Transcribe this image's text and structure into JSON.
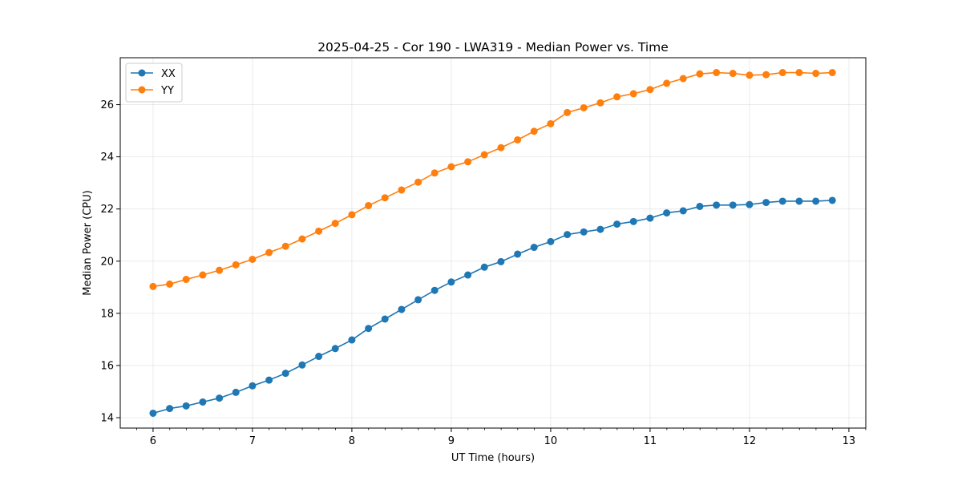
{
  "chart_data": {
    "type": "line",
    "title": "2025-04-25 - Cor 190 - LWA319 - Median Power vs. Time",
    "xlabel": "UT Time (hours)",
    "ylabel": "Median Power (CPU)",
    "xlim": [
      5.67,
      13.17
    ],
    "ylim": [
      13.6,
      27.8
    ],
    "xticks": [
      6,
      7,
      8,
      9,
      10,
      11,
      12,
      13
    ],
    "yticks": [
      14,
      16,
      18,
      20,
      22,
      24,
      26
    ],
    "minor_x_step": 0.1667,
    "grid": true,
    "legend_position": "top-left",
    "x": [
      6.0,
      6.167,
      6.333,
      6.5,
      6.667,
      6.833,
      7.0,
      7.167,
      7.333,
      7.5,
      7.667,
      7.833,
      8.0,
      8.167,
      8.333,
      8.5,
      8.667,
      8.833,
      9.0,
      9.167,
      9.333,
      9.5,
      9.667,
      9.833,
      10.0,
      10.167,
      10.333,
      10.5,
      10.667,
      10.833,
      11.0,
      11.167,
      11.333,
      11.5,
      11.667,
      11.833,
      12.0,
      12.167,
      12.333,
      12.5,
      12.667,
      12.833
    ],
    "series": [
      {
        "name": "XX",
        "color": "#1f77b4",
        "values": [
          14.17,
          14.35,
          14.45,
          14.6,
          14.75,
          14.97,
          15.22,
          15.44,
          15.7,
          16.02,
          16.35,
          16.65,
          16.98,
          17.42,
          17.78,
          18.15,
          18.52,
          18.88,
          19.2,
          19.47,
          19.77,
          19.98,
          20.27,
          20.53,
          20.75,
          21.02,
          21.12,
          21.22,
          21.42,
          21.52,
          21.65,
          21.85,
          21.93,
          22.1,
          22.15,
          22.15,
          22.17,
          22.25,
          22.3,
          22.3,
          22.3,
          22.33
        ]
      },
      {
        "name": "YY",
        "color": "#ff7f0e",
        "values": [
          19.03,
          19.12,
          19.3,
          19.47,
          19.65,
          19.86,
          20.07,
          20.33,
          20.57,
          20.85,
          21.15,
          21.45,
          21.78,
          22.13,
          22.43,
          22.73,
          23.03,
          23.38,
          23.62,
          23.81,
          24.08,
          24.35,
          24.65,
          24.98,
          25.27,
          25.7,
          25.88,
          26.07,
          26.3,
          26.42,
          26.58,
          26.82,
          27.0,
          27.18,
          27.23,
          27.2,
          27.13,
          27.15,
          27.23,
          27.23,
          27.2,
          27.23
        ]
      }
    ]
  }
}
